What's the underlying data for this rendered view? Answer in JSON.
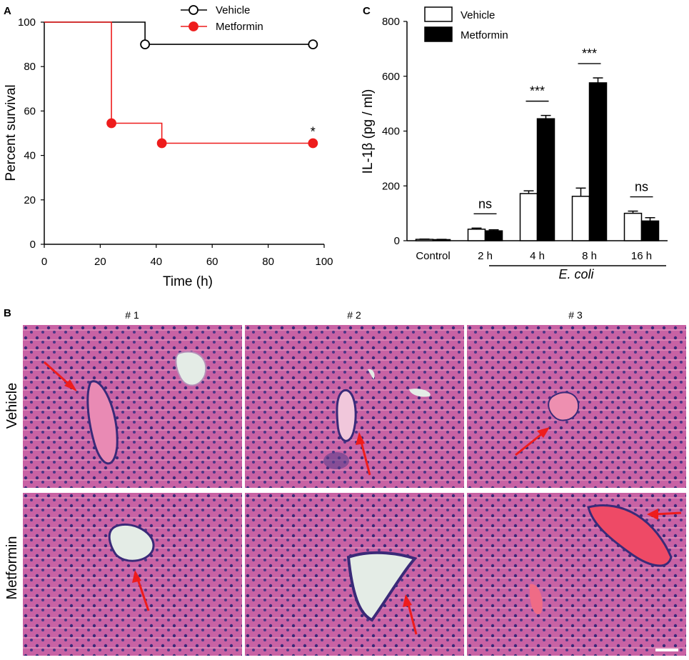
{
  "panels": {
    "a": {
      "letter": "A"
    },
    "b": {
      "letter": "B",
      "columns": [
        "# 1",
        "# 2",
        "# 3"
      ],
      "rows": [
        "Vehicle",
        "Metformin"
      ]
    },
    "c": {
      "letter": "C"
    }
  },
  "colors": {
    "vehicle": "#000000",
    "metformin": "#ee1c1c",
    "arrow": "#ee1c1c",
    "tissue": "#c85a9a",
    "nuclei": "#3a2a78",
    "vessel": "#e4ece6"
  },
  "chart_data": [
    {
      "id": "A",
      "type": "line",
      "subtype": "kaplan-meier survival",
      "xlabel": "Time (h)",
      "ylabel": "Percent survival",
      "xlim": [
        0,
        100
      ],
      "ylim": [
        0,
        100
      ],
      "xticks": [
        0,
        20,
        40,
        60,
        80,
        100
      ],
      "yticks": [
        0,
        20,
        40,
        60,
        80,
        100
      ],
      "legend_position": "top",
      "series": [
        {
          "name": "Vehicle",
          "marker": "open-circle",
          "color": "#000000",
          "steps": [
            [
              0,
              100
            ],
            [
              36,
              100
            ],
            [
              36,
              90
            ],
            [
              97,
              90
            ]
          ],
          "points": [
            [
              36,
              90
            ],
            [
              96,
              90
            ]
          ]
        },
        {
          "name": "Metformin",
          "marker": "filled-circle",
          "color": "#ee1c1c",
          "steps": [
            [
              0,
              100
            ],
            [
              24,
              100
            ],
            [
              24,
              54.5
            ],
            [
              42,
              54.5
            ],
            [
              42,
              45.5
            ],
            [
              97,
              45.5
            ]
          ],
          "points": [
            [
              24,
              54.5
            ],
            [
              42,
              45.5
            ],
            [
              96,
              45.5
            ]
          ]
        }
      ],
      "annotations": [
        {
          "text": "*",
          "x": 96,
          "y": 45.5
        }
      ]
    },
    {
      "id": "C",
      "type": "bar",
      "ylabel": "IL-1β (pg / ml)",
      "xlabel": "E. coli",
      "ylim": [
        0,
        800
      ],
      "yticks": [
        0,
        200,
        400,
        600,
        800
      ],
      "categories": [
        "Control",
        "2 h",
        "4 h",
        "8 h",
        "16 h"
      ],
      "legend_position": "top-left",
      "series": [
        {
          "name": "Vehicle",
          "fill": "#ffffff",
          "values": [
            5,
            42,
            172,
            162,
            100
          ],
          "errors": [
            1,
            4,
            10,
            30,
            8
          ]
        },
        {
          "name": "Metformin",
          "fill": "#000000",
          "values": [
            4,
            36,
            445,
            576,
            72
          ],
          "errors": [
            1,
            4,
            12,
            18,
            12
          ]
        }
      ],
      "significance": [
        "",
        "ns",
        "***",
        "***",
        "ns"
      ]
    }
  ]
}
